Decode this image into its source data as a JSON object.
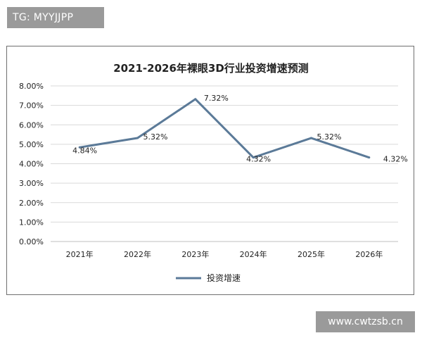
{
  "watermarks": {
    "top_left": "TG: MYYJJPP",
    "bottom_right": "www.cwtzsb.cn"
  },
  "chart_data": {
    "type": "line",
    "title": "2021-2026年裸眼3D行业投资增速预测",
    "categories": [
      "2021年",
      "2022年",
      "2023年",
      "2024年",
      "2025年",
      "2026年"
    ],
    "series": [
      {
        "name": "投资增速",
        "values": [
          4.84,
          5.32,
          7.32,
          4.32,
          5.32,
          4.32
        ],
        "labels": [
          "4.84%",
          "5.32%",
          "7.32%",
          "4.32%",
          "5.32%",
          "4.32%"
        ],
        "color": "#5b7a98"
      }
    ],
    "yticks": [
      "0.00%",
      "1.00%",
      "2.00%",
      "3.00%",
      "4.00%",
      "5.00%",
      "6.00%",
      "7.00%",
      "8.00%"
    ],
    "ylim": [
      0,
      8
    ],
    "grid": true,
    "legend": "bottom"
  }
}
